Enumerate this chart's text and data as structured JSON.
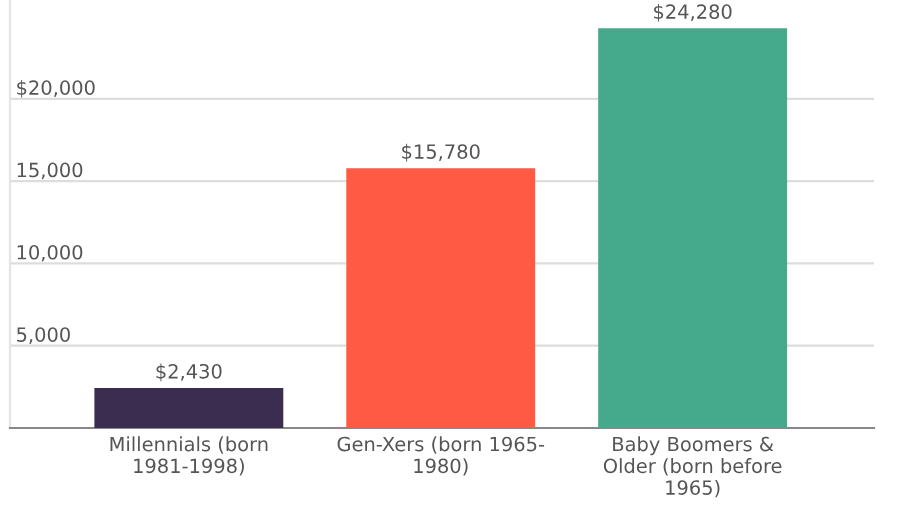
{
  "chart_data": {
    "type": "bar",
    "categories": [
      "Millennials (born\n1981-1998)",
      "Gen-Xers (born 1965-\n1980)",
      "Baby Boomers &\nOlder (born before\n1965)"
    ],
    "values": [
      2430,
      15780,
      24280
    ],
    "colors": [
      "#3b2d4f",
      "#ff5a43",
      "#45aa8b"
    ],
    "value_labels": [
      "$2,430",
      "$15,780",
      "$24,280"
    ],
    "ylim": [
      0,
      26000
    ],
    "yticks": [
      {
        "value": 0,
        "label": null
      },
      "5,000",
      "10,000",
      "15,000",
      "$20,000"
    ],
    "grid": "y",
    "legend": false
  }
}
